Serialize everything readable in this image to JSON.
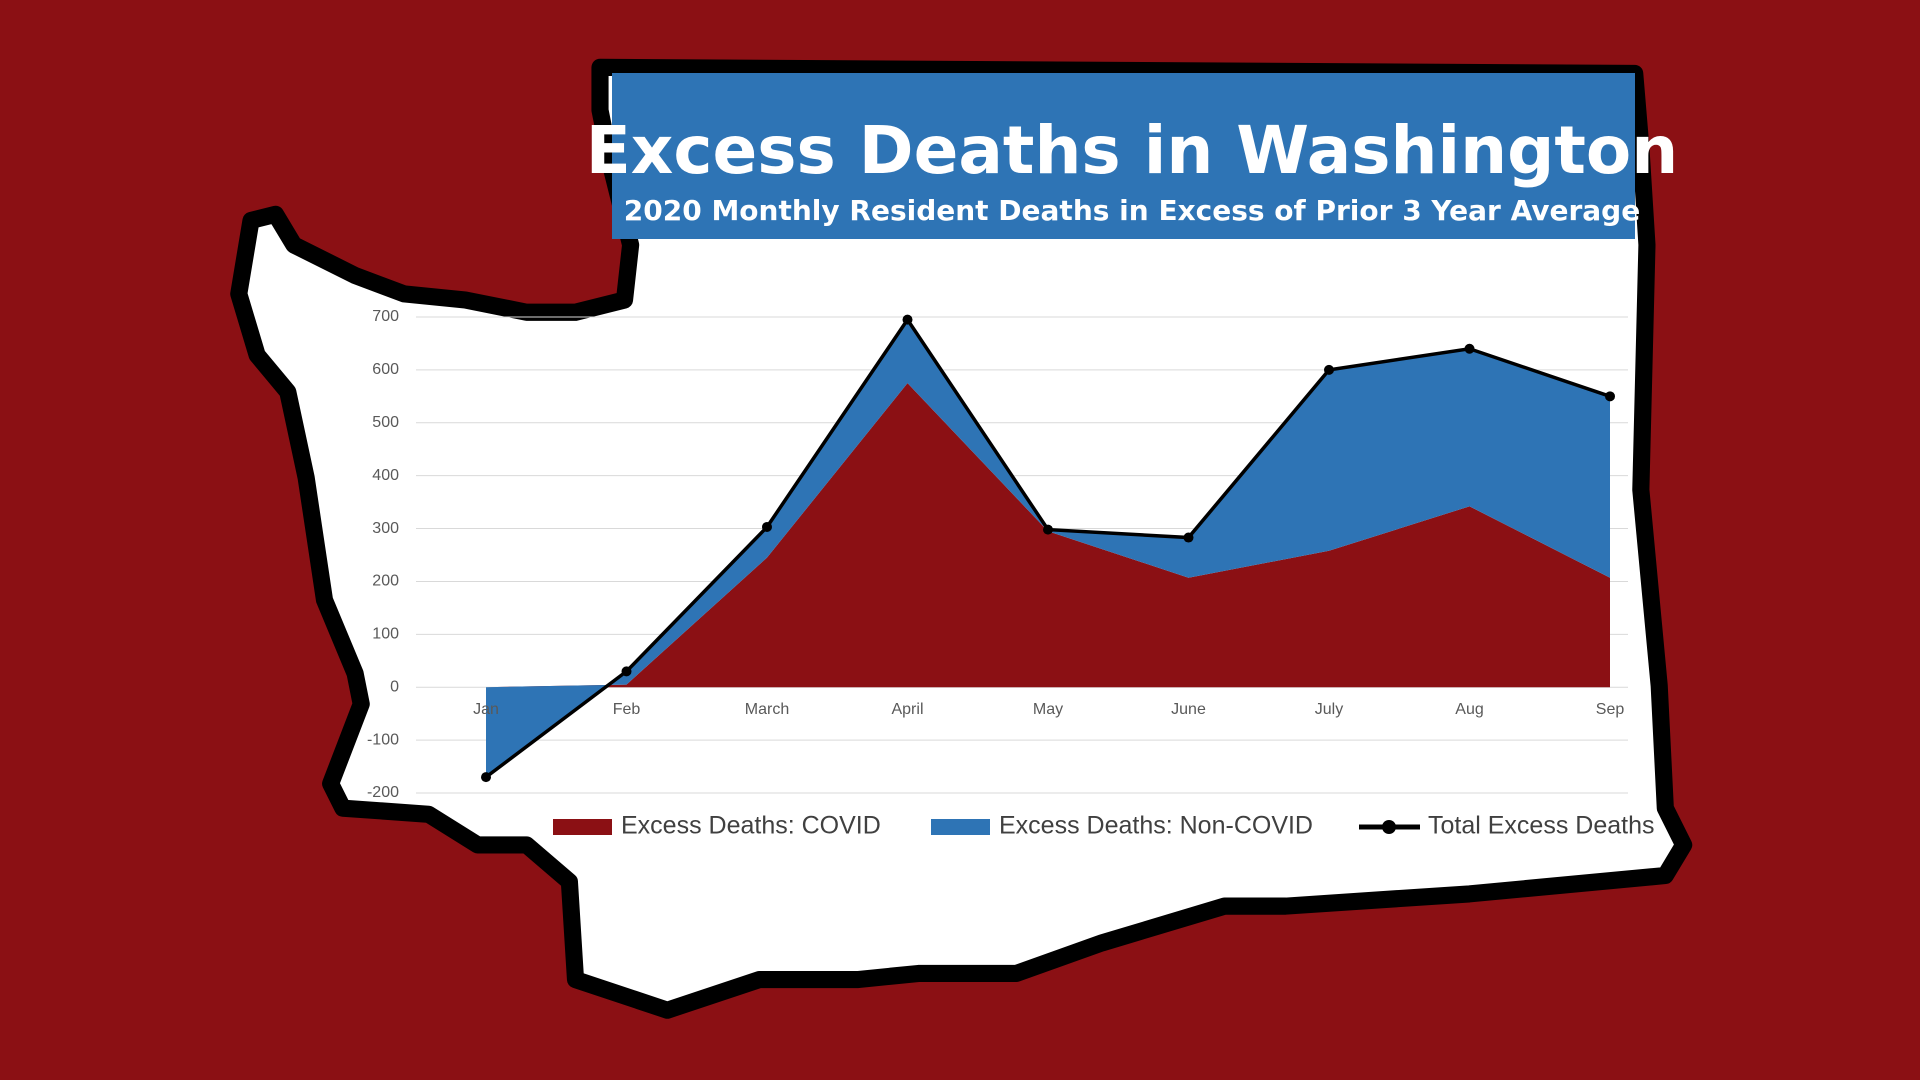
{
  "chart_data": {
    "type": "area",
    "stacked": true,
    "title": "Excess Deaths in Washington",
    "subtitle": "2020 Monthly Resident Deaths in Excess of Prior 3 Year Average",
    "categories": [
      "Jan",
      "Feb",
      "March",
      "April",
      "May",
      "June",
      "July",
      "Aug",
      "Sep"
    ],
    "series": [
      {
        "name": "Excess Deaths: COVID",
        "color": "#8b1014",
        "values": [
          0,
          5,
          245,
          575,
          295,
          207,
          258,
          342,
          207
        ]
      },
      {
        "name": "Excess Deaths: Non-COVID",
        "color": "#2e74b5",
        "values": [
          -170,
          25,
          58,
          120,
          3,
          76,
          342,
          298,
          343
        ]
      },
      {
        "name": "Total Excess Deaths",
        "type": "line",
        "color": "#000000",
        "values": [
          -170,
          30,
          303,
          695,
          298,
          283,
          600,
          640,
          550
        ]
      }
    ],
    "ylim": [
      -200,
      700
    ],
    "yticks": [
      -200,
      -100,
      0,
      100,
      200,
      300,
      400,
      500,
      600,
      700
    ],
    "grid": true,
    "legend": "bottom"
  }
}
